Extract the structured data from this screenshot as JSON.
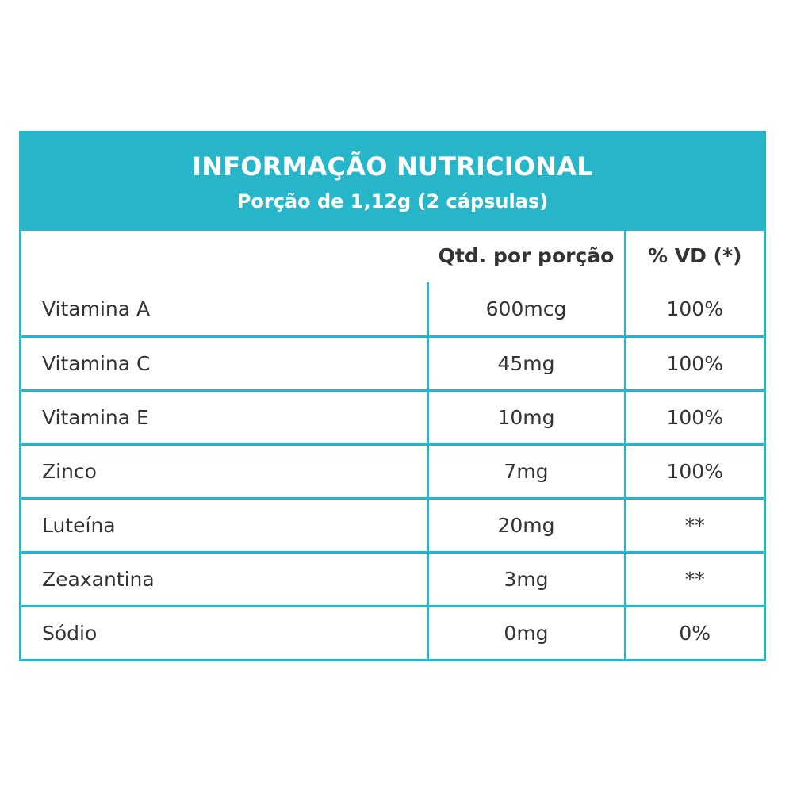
{
  "panel": {
    "title": "INFORMAÇÃO NUTRICIONAL",
    "subtitle": "Porção de 1,12g (2 cápsulas)"
  },
  "columns": {
    "nutrient": "",
    "amount": "Qtd. por porção",
    "daily_value": "% VD (*)"
  },
  "rows": [
    {
      "nutrient": "Vitamina A",
      "amount": "600mcg",
      "daily_value": "100%"
    },
    {
      "nutrient": "Vitamina C",
      "amount": "45mg",
      "daily_value": "100%"
    },
    {
      "nutrient": "Vitamina E",
      "amount": "10mg",
      "daily_value": "100%"
    },
    {
      "nutrient": "Zinco",
      "amount": "7mg",
      "daily_value": "100%"
    },
    {
      "nutrient": "Luteína",
      "amount": "20mg",
      "daily_value": "**"
    },
    {
      "nutrient": "Zeaxantina",
      "amount": "3mg",
      "daily_value": "**"
    },
    {
      "nutrient": "Sódio",
      "amount": "0mg",
      "daily_value": "0%"
    }
  ],
  "colors": {
    "accent": "#27b6c9",
    "text": "#333333",
    "header_text": "#ffffff"
  }
}
